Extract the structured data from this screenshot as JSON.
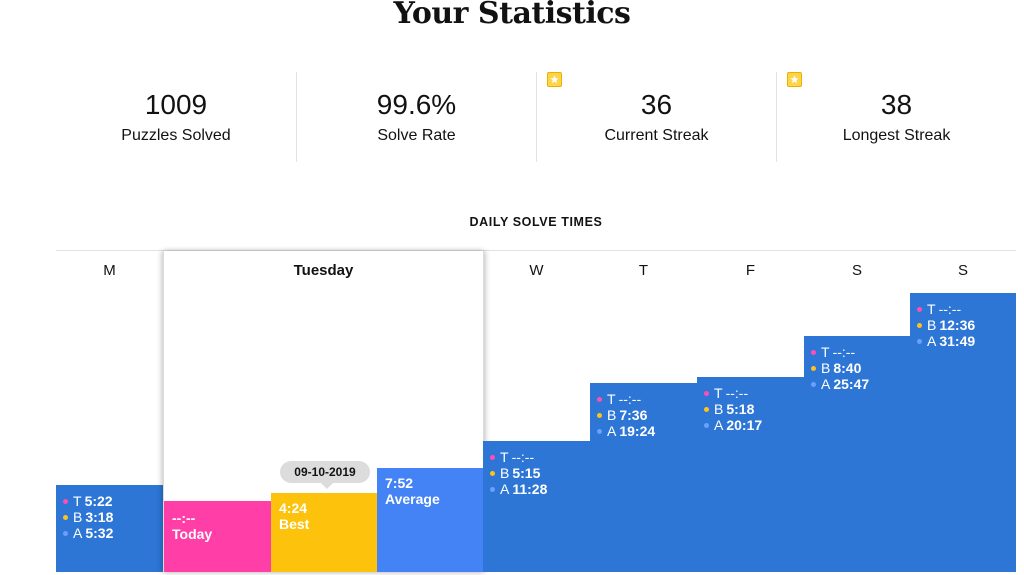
{
  "page": {
    "title": "Your Statistics"
  },
  "stats": [
    {
      "value": "1009",
      "label": "Puzzles Solved",
      "starred": false
    },
    {
      "value": "99.6%",
      "label": "Solve Rate",
      "starred": false
    },
    {
      "value": "36",
      "label": "Current Streak",
      "starred": true
    },
    {
      "value": "38",
      "label": "Longest Streak",
      "starred": true
    }
  ],
  "icons": {
    "streak": "star-icon"
  },
  "daily_solve_times": {
    "title": "DAILY SOLVE TIMES",
    "legend_letters": {
      "today": "T",
      "best": "B",
      "average": "A"
    },
    "days": [
      {
        "label": "M",
        "today": "5:22",
        "best": "3:18",
        "average": "5:32"
      },
      {
        "label": "Tuesday",
        "today": "--:--",
        "best": "4:24",
        "average": "7:52"
      },
      {
        "label": "W",
        "today": "--:--",
        "best": "5:15",
        "average": "11:28"
      },
      {
        "label": "T",
        "today": "--:--",
        "best": "7:36",
        "average": "19:24"
      },
      {
        "label": "F",
        "today": "--:--",
        "best": "5:18",
        "average": "20:17"
      },
      {
        "label": "S",
        "today": "--:--",
        "best": "8:40",
        "average": "25:47"
      },
      {
        "label": "S",
        "today": "--:--",
        "best": "12:36",
        "average": "31:49"
      }
    ],
    "expanded": {
      "today_label": "Today",
      "best_label": "Best",
      "average_label": "Average",
      "best_date": "09-10-2019"
    }
  },
  "colors": {
    "bar": "#2d76d6",
    "today": "#ff3ea8",
    "best": "#fdc20b",
    "average": "#4483f5",
    "today_dot": "#ff4fb5",
    "best_dot": "#ffc21a",
    "average_dot": "#6aa0ff",
    "star": "#ffd34a"
  }
}
